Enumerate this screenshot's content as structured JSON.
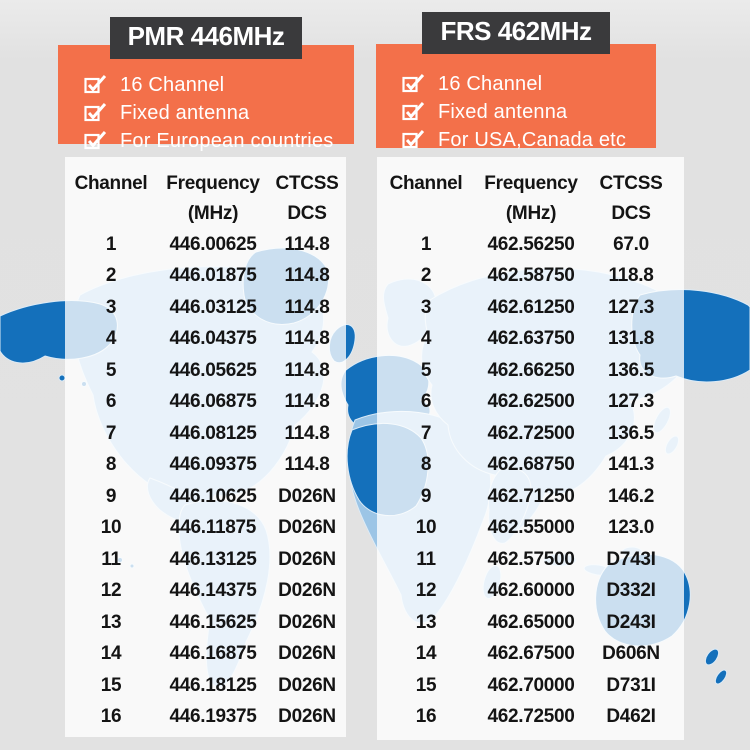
{
  "colors": {
    "page_bg": "#e2e2e2",
    "accent_orange": "#f3704a",
    "title_bg": "#3a3a3c",
    "land_light": "#9cc5e6",
    "land_dark": "#1470bb",
    "table_text": "#141414"
  },
  "panels": [
    {
      "title": "PMR 446MHz",
      "features": [
        "16 Channel",
        "Fixed antenna",
        "For European countries"
      ],
      "table": {
        "col1": "Channel",
        "col2": "Frequency",
        "col3": "CTCSS",
        "col2_sub": "(MHz)",
        "col3_sub": "DCS",
        "rows": [
          [
            "1",
            "446.00625",
            "114.8"
          ],
          [
            "2",
            "446.01875",
            "114.8"
          ],
          [
            "3",
            "446.03125",
            "114.8"
          ],
          [
            "4",
            "446.04375",
            "114.8"
          ],
          [
            "5",
            "446.05625",
            "114.8"
          ],
          [
            "6",
            "446.06875",
            "114.8"
          ],
          [
            "7",
            "446.08125",
            "114.8"
          ],
          [
            "8",
            "446.09375",
            "114.8"
          ],
          [
            "9",
            "446.10625",
            "D026N"
          ],
          [
            "10",
            "446.11875",
            "D026N"
          ],
          [
            "11",
            "446.13125",
            "D026N"
          ],
          [
            "12",
            "446.14375",
            "D026N"
          ],
          [
            "13",
            "446.15625",
            "D026N"
          ],
          [
            "14",
            "446.16875",
            "D026N"
          ],
          [
            "15",
            "446.18125",
            "D026N"
          ],
          [
            "16",
            "446.19375",
            "D026N"
          ]
        ]
      }
    },
    {
      "title": "FRS 462MHz",
      "features": [
        "16 Channel",
        "Fixed antenna",
        "For USA,Canada etc"
      ],
      "table": {
        "col1": "Channel",
        "col2": "Frequency",
        "col3": "CTCSS",
        "col2_sub": "(MHz)",
        "col3_sub": "DCS",
        "rows": [
          [
            "1",
            "462.56250",
            "67.0"
          ],
          [
            "2",
            "462.58750",
            "118.8"
          ],
          [
            "3",
            "462.61250",
            "127.3"
          ],
          [
            "4",
            "462.63750",
            "131.8"
          ],
          [
            "5",
            "462.66250",
            "136.5"
          ],
          [
            "6",
            "462.62500",
            "127.3"
          ],
          [
            "7",
            "462.72500",
            "136.5"
          ],
          [
            "8",
            "462.68750",
            "141.3"
          ],
          [
            "9",
            "462.71250",
            "146.2"
          ],
          [
            "10",
            "462.55000",
            "123.0"
          ],
          [
            "11",
            "462.57500",
            "D743I"
          ],
          [
            "12",
            "462.60000",
            "D332I"
          ],
          [
            "13",
            "462.65000",
            "D243I"
          ],
          [
            "14",
            "462.67500",
            "D606N"
          ],
          [
            "15",
            "462.70000",
            "D731I"
          ],
          [
            "16",
            "462.72500",
            "D462I"
          ]
        ]
      }
    }
  ]
}
